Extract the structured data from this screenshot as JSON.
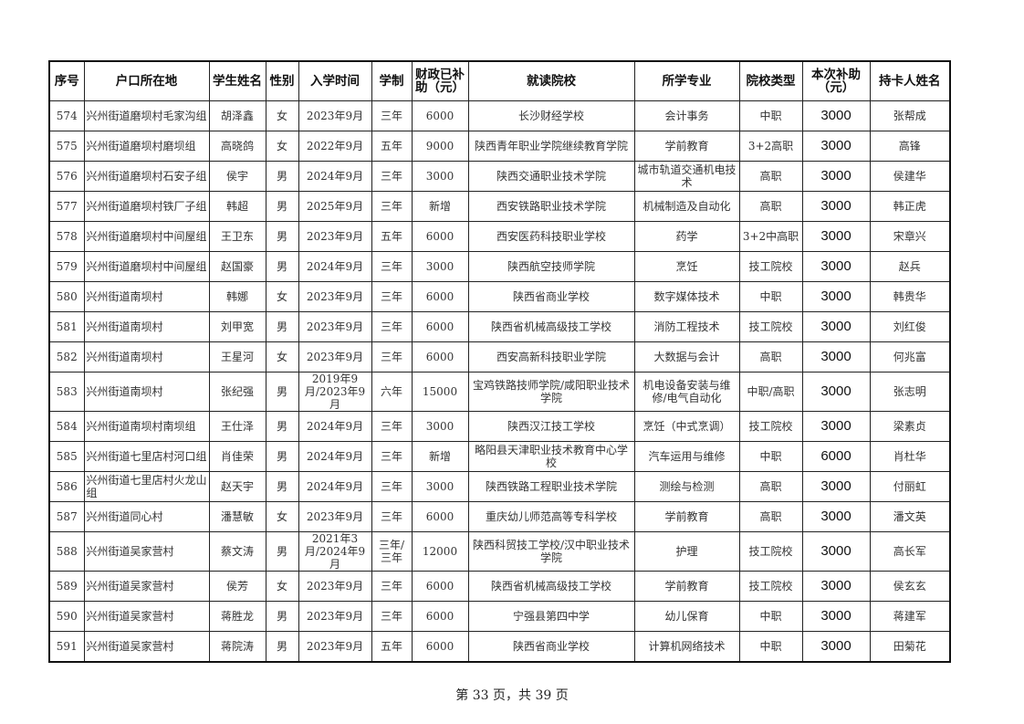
{
  "headers": [
    "序号",
    "户口所在地",
    "学生姓名",
    "性别",
    "入学时间",
    "学制",
    "财政已补助（元）",
    "就读院校",
    "所学专业",
    "院校类型",
    "本次补助（元）",
    "持卡人姓名"
  ],
  "rows": [
    [
      "574",
      "兴州街道磨坝村毛家沟组",
      "胡泽鑫",
      "女",
      "2023年9月",
      "三年",
      "6000",
      "长沙财经学校",
      "会计事务",
      "中职",
      "3000",
      "张帮成"
    ],
    [
      "575",
      "兴州街道磨坝村磨坝组",
      "高晓鸽",
      "女",
      "2022年9月",
      "五年",
      "9000",
      "陕西青年职业学院继续教育学院",
      "学前教育",
      "3+2高职",
      "3000",
      "高锋"
    ],
    [
      "576",
      "兴州街道磨坝村石安子组",
      "侯宇",
      "男",
      "2024年9月",
      "三年",
      "3000",
      "陕西交通职业技术学院",
      "城市轨道交通机电技术",
      "高职",
      "3000",
      "侯建华"
    ],
    [
      "577",
      "兴州街道磨坝村铁厂子组",
      "韩超",
      "男",
      "2025年9月",
      "三年",
      "新增",
      "西安铁路职业技术学院",
      "机械制造及自动化",
      "高职",
      "3000",
      "韩正虎"
    ],
    [
      "578",
      "兴州街道磨坝村中间屋组",
      "王卫东",
      "男",
      "2023年9月",
      "五年",
      "6000",
      "西安医药科技职业学校",
      "药学",
      "3+2中高职",
      "3000",
      "宋章兴"
    ],
    [
      "579",
      "兴州街道磨坝村中间屋组",
      "赵国豪",
      "男",
      "2024年9月",
      "三年",
      "3000",
      "陕西航空技师学院",
      "烹饪",
      "技工院校",
      "3000",
      "赵兵"
    ],
    [
      "580",
      "兴州街道南坝村",
      "韩娜",
      "女",
      "2023年9月",
      "三年",
      "6000",
      "陕西省商业学校",
      "数字媒体技术",
      "中职",
      "3000",
      "韩贵华"
    ],
    [
      "581",
      "兴州街道南坝村",
      "刘甲宽",
      "男",
      "2023年9月",
      "三年",
      "6000",
      "陕西省机械高级技工学校",
      "消防工程技术",
      "技工院校",
      "3000",
      "刘红俊"
    ],
    [
      "582",
      "兴州街道南坝村",
      "王星河",
      "女",
      "2023年9月",
      "三年",
      "6000",
      "西安高新科技职业学院",
      "大数据与会计",
      "高职",
      "3000",
      "何兆富"
    ],
    [
      "583",
      "兴州街道南坝村",
      "张纪强",
      "男",
      "2019年9月/2023年9月",
      "六年",
      "15000",
      "宝鸡铁路技师学院/咸阳职业技术学院",
      "机电设备安装与维修/电气自动化",
      "中职/高职",
      "3000",
      "张志明"
    ],
    [
      "584",
      "兴州街道南坝村南坝组",
      "王仕泽",
      "男",
      "2024年9月",
      "三年",
      "3000",
      "陕西汉江技工学校",
      "烹饪（中式烹调）",
      "技工院校",
      "3000",
      "梁素贞"
    ],
    [
      "585",
      "兴州街道七里店村河口组",
      "肖佳荣",
      "男",
      "2024年9月",
      "三年",
      "新增",
      "略阳县天津职业技术教育中心学校",
      "汽车运用与维修",
      "中职",
      "6000",
      "肖杜华"
    ],
    [
      "586",
      "兴州街道七里店村火龙山组",
      "赵天宇",
      "男",
      "2024年9月",
      "三年",
      "3000",
      "陕西铁路工程职业技术学院",
      "测绘与检测",
      "高职",
      "3000",
      "付丽虹"
    ],
    [
      "587",
      "兴州街道同心村",
      "潘慧敏",
      "女",
      "2023年9月",
      "三年",
      "6000",
      "重庆幼儿师范高等专科学校",
      "学前教育",
      "高职",
      "3000",
      "潘文英"
    ],
    [
      "588",
      "兴州街道吴家营村",
      "蔡文涛",
      "男",
      "2021年3月/2024年9月",
      "三年/三年",
      "12000",
      "陕西科贸技工学校/汉中职业技术学院",
      "护理",
      "技工院校",
      "3000",
      "高长军"
    ],
    [
      "589",
      "兴州街道吴家营村",
      "侯芳",
      "女",
      "2023年9月",
      "三年",
      "6000",
      "陕西省机械高级技工学校",
      "学前教育",
      "技工院校",
      "3000",
      "侯玄玄"
    ],
    [
      "590",
      "兴州街道吴家营村",
      "蒋胜龙",
      "男",
      "2023年9月",
      "三年",
      "6000",
      "宁强县第四中学",
      "幼儿保育",
      "中职",
      "3000",
      "蒋建军"
    ],
    [
      "591",
      "兴州街道吴家营村",
      "蒋院涛",
      "男",
      "2023年9月",
      "五年",
      "6000",
      "陕西省商业学校",
      "计算机网络技术",
      "中职",
      "3000",
      "田菊花"
    ]
  ],
  "footer": "第 33 页，共 39 页"
}
